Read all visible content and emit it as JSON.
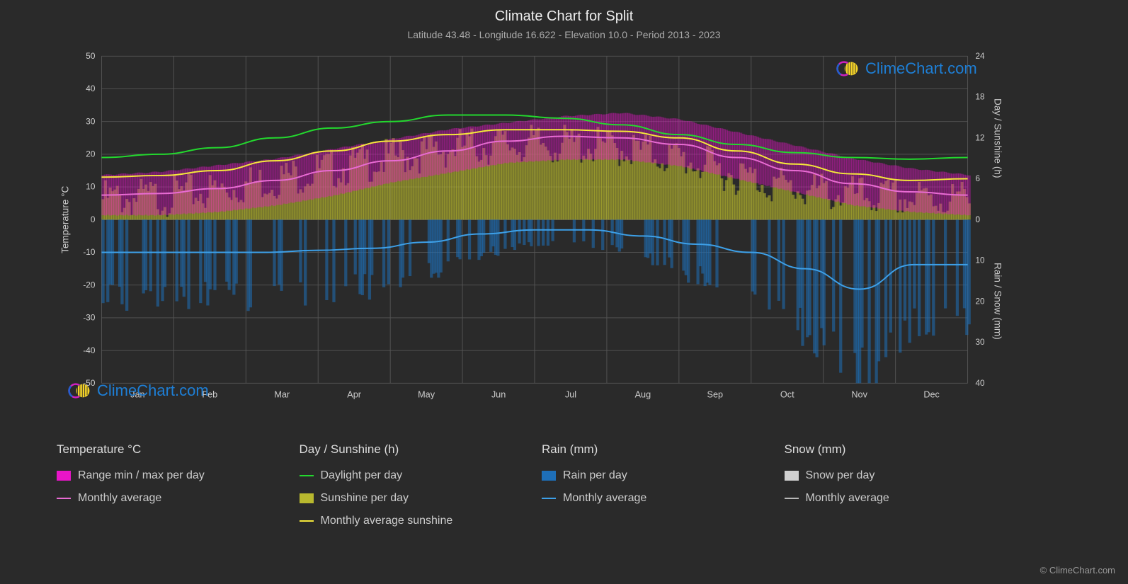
{
  "title": "Climate Chart for Split",
  "subtitle": "Latitude 43.48 - Longitude 16.622 - Elevation 10.0 - Period 2013 - 2023",
  "watermark_text": "ClimeChart.com",
  "copyright": "© ClimeChart.com",
  "colors": {
    "background": "#2a2a2a",
    "grid": "#555555",
    "text": "#cccccc",
    "temp_range": "#e815c8",
    "temp_avg": "#e86bd3",
    "daylight": "#23d82e",
    "sunshine_bars": "#b8b82e",
    "sunshine_avg": "#f5e83a",
    "rain_bars": "#1e6fb8",
    "rain_avg": "#3da0e8",
    "snow_bars": "#d0d0d0",
    "snow_avg": "#b8b8b8",
    "watermark_blue": "#1e7fd6",
    "logo_yellow": "#f5d428",
    "logo_magenta": "#d020c0",
    "logo_blue": "#2060d0"
  },
  "axes": {
    "left_title": "Temperature °C",
    "left_min": -50,
    "left_max": 50,
    "left_step": 10,
    "right_upper_title": "Day / Sunshine (h)",
    "right_upper_ticks": [
      0,
      6,
      12,
      18,
      24
    ],
    "right_upper_tmin": 0,
    "right_upper_tmax": 50,
    "right_lower_title": "Rain / Snow (mm)",
    "right_lower_ticks": [
      0,
      10,
      20,
      30,
      40
    ],
    "right_lower_tmin": 0,
    "right_lower_tmax": -50,
    "months": [
      "Jan",
      "Feb",
      "Mar",
      "Apr",
      "May",
      "Jun",
      "Jul",
      "Aug",
      "Sep",
      "Oct",
      "Nov",
      "Dec"
    ]
  },
  "series": {
    "daylight": [
      19,
      20,
      22,
      25,
      28,
      30,
      32,
      32,
      31,
      29,
      26,
      23,
      20.5,
      19,
      18.5,
      19
    ],
    "sunshine_avg": [
      13,
      13.5,
      15,
      18,
      21,
      24,
      26,
      27.5,
      27.5,
      27,
      25,
      21,
      17,
      14,
      12,
      12.5
    ],
    "temp_avg": [
      7.5,
      8,
      9.5,
      12,
      15,
      18,
      21,
      24,
      25.5,
      25,
      23,
      19,
      15,
      11,
      8.5,
      7.5
    ],
    "temp_max_env": [
      14,
      15,
      17,
      19,
      22,
      25,
      28,
      30,
      32,
      33,
      31,
      27,
      23,
      19,
      16,
      14
    ],
    "temp_min_env": [
      2,
      2,
      3,
      5,
      8,
      12,
      15,
      18,
      19,
      19,
      17,
      13,
      9,
      5,
      3,
      2
    ],
    "rain_avg": [
      8,
      8,
      8,
      8,
      7.5,
      7,
      5.5,
      3.5,
      2.5,
      2.5,
      4,
      6,
      8,
      12,
      17,
      11,
      11
    ],
    "sunshine_bars_h": [
      4.5,
      4.8,
      5.8,
      7.5,
      9,
      10.5,
      12,
      12.5,
      12.5,
      12,
      10.5,
      8,
      6,
      5,
      4.5,
      4.5
    ],
    "rain_bars_spikes": true
  },
  "legend": {
    "temp_head": "Temperature °C",
    "temp_range_lbl": "Range min / max per day",
    "temp_avg_lbl": "Monthly average",
    "day_head": "Day / Sunshine (h)",
    "daylight_lbl": "Daylight per day",
    "sunshine_lbl": "Sunshine per day",
    "sunshine_avg_lbl": "Monthly average sunshine",
    "rain_head": "Rain (mm)",
    "rain_per_lbl": "Rain per day",
    "rain_avg_lbl": "Monthly average",
    "snow_head": "Snow (mm)",
    "snow_per_lbl": "Snow per day",
    "snow_avg_lbl": "Monthly average"
  }
}
